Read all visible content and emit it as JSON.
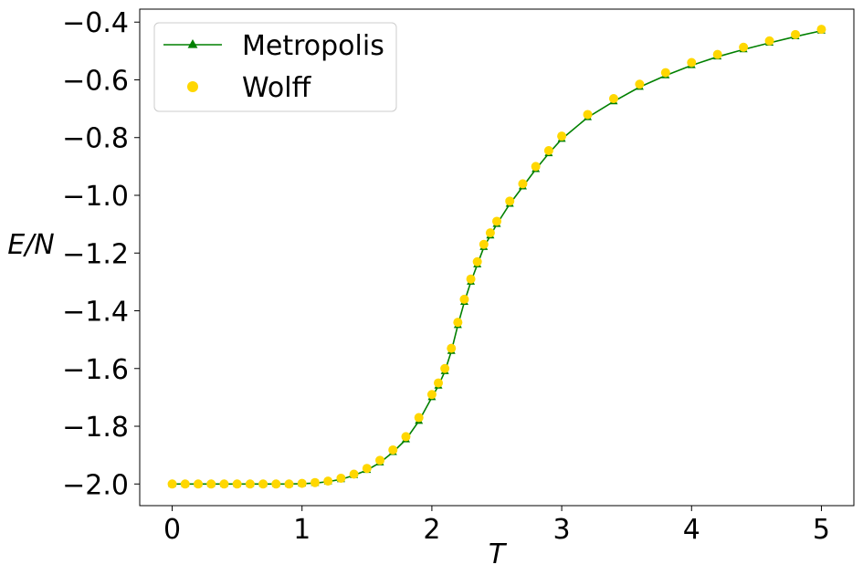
{
  "chart_data": {
    "type": "line",
    "title": "",
    "xlabel": "T",
    "ylabel": "E/N",
    "xlim": [
      -0.25,
      5.25
    ],
    "ylim": [
      -2.075,
      -0.355
    ],
    "xticks": [
      0,
      1,
      2,
      3,
      4,
      5
    ],
    "xtick_labels": [
      "0",
      "1",
      "2",
      "3",
      "4",
      "5"
    ],
    "yticks": [
      -2.0,
      -1.8,
      -1.6,
      -1.4,
      -1.2,
      -1.0,
      -0.8,
      -0.6,
      -0.4
    ],
    "ytick_labels": [
      "−2.0",
      "−1.8",
      "−1.6",
      "−1.4",
      "−1.2",
      "−1.0",
      "−0.8",
      "−0.6",
      "−0.4"
    ],
    "grid": false,
    "legend_position": "top-left",
    "x": [
      0.0,
      0.1,
      0.2,
      0.3,
      0.4,
      0.5,
      0.6,
      0.7,
      0.8,
      0.9,
      1.0,
      1.1,
      1.2,
      1.3,
      1.4,
      1.5,
      1.6,
      1.7,
      1.8,
      1.9,
      2.0,
      2.05,
      2.1,
      2.15,
      2.2,
      2.25,
      2.3,
      2.35,
      2.4,
      2.45,
      2.5,
      2.6,
      2.7,
      2.8,
      2.9,
      3.0,
      3.2,
      3.4,
      3.6,
      3.8,
      4.0,
      4.2,
      4.4,
      4.6,
      4.8,
      5.0
    ],
    "series": [
      {
        "name": "Metropolis",
        "color": "#008000",
        "marker": "triangle",
        "values": [
          -2.0,
          -2.0,
          -2.0,
          -2.0,
          -2.0,
          -2.0,
          -2.0,
          -2.0,
          -2.0,
          -2.0,
          -1.999,
          -1.997,
          -1.992,
          -1.984,
          -1.97,
          -1.952,
          -1.926,
          -1.89,
          -1.846,
          -1.782,
          -1.7,
          -1.66,
          -1.61,
          -1.54,
          -1.45,
          -1.37,
          -1.3,
          -1.24,
          -1.18,
          -1.14,
          -1.1,
          -1.03,
          -0.97,
          -0.91,
          -0.855,
          -0.805,
          -0.73,
          -0.675,
          -0.625,
          -0.585,
          -0.55,
          -0.52,
          -0.495,
          -0.472,
          -0.45,
          -0.43
        ]
      },
      {
        "name": "Wolff",
        "color": "#ffd700",
        "marker": "circle",
        "values": [
          -2.0,
          -2.0,
          -2.0,
          -2.0,
          -2.0,
          -2.0,
          -2.0,
          -2.0,
          -2.0,
          -2.0,
          -1.998,
          -1.995,
          -1.99,
          -1.98,
          -1.966,
          -1.946,
          -1.918,
          -1.882,
          -1.836,
          -1.77,
          -1.69,
          -1.65,
          -1.6,
          -1.53,
          -1.44,
          -1.36,
          -1.29,
          -1.23,
          -1.17,
          -1.13,
          -1.09,
          -1.02,
          -0.96,
          -0.9,
          -0.845,
          -0.795,
          -0.72,
          -0.665,
          -0.615,
          -0.575,
          -0.54,
          -0.512,
          -0.487,
          -0.465,
          -0.443,
          -0.425
        ]
      }
    ]
  }
}
